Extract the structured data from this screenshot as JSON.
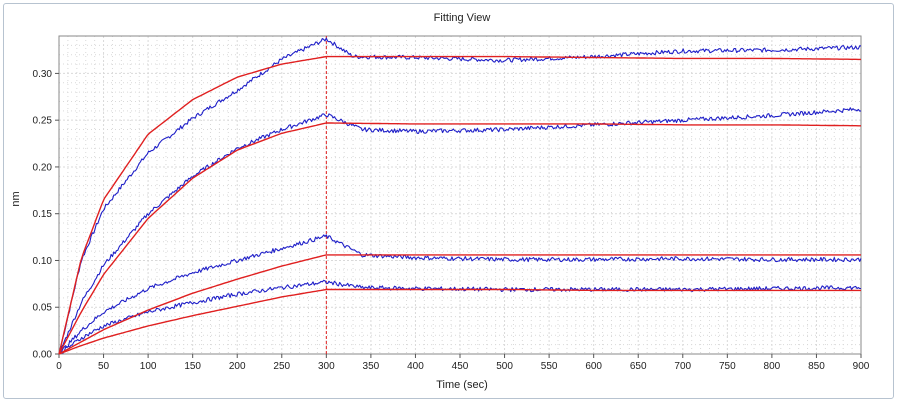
{
  "window": {
    "title": "Fitting View"
  },
  "chart_data": {
    "type": "line",
    "title": "Fitting View",
    "xlabel": "Time (sec)",
    "ylabel": "nm",
    "xlim": [
      0,
      900
    ],
    "ylim": [
      0,
      0.34
    ],
    "x_ticks": [
      0,
      50,
      100,
      150,
      200,
      250,
      300,
      350,
      400,
      450,
      500,
      550,
      600,
      650,
      700,
      750,
      800,
      850,
      900
    ],
    "y_ticks": [
      0.0,
      0.05,
      0.1,
      0.15,
      0.2,
      0.25,
      0.3
    ],
    "y_tick_labels": [
      "0.00",
      "0.05",
      "0.10",
      "0.15",
      "0.20",
      "0.25",
      "0.30"
    ],
    "grid": true,
    "legend": "none",
    "association_end_x": 300,
    "colors": {
      "measured": "#1f1fc8",
      "fit": "#e02020",
      "marker": "#e02020",
      "grid": "#d9d9d9"
    },
    "series": [
      {
        "role": "measured",
        "x": [
          0,
          25,
          50,
          100,
          150,
          200,
          250,
          300,
          330,
          400,
          500,
          600,
          700,
          800,
          900
        ],
        "values": [
          0.0,
          0.1,
          0.155,
          0.215,
          0.252,
          0.282,
          0.315,
          0.337,
          0.318,
          0.317,
          0.314,
          0.318,
          0.324,
          0.325,
          0.328
        ]
      },
      {
        "role": "fit",
        "x": [
          0,
          25,
          50,
          100,
          150,
          200,
          250,
          300,
          400,
          500,
          600,
          700,
          800,
          900
        ],
        "values": [
          0.0,
          0.102,
          0.165,
          0.235,
          0.272,
          0.296,
          0.31,
          0.318,
          0.318,
          0.318,
          0.317,
          0.316,
          0.316,
          0.315
        ]
      },
      {
        "role": "measured",
        "x": [
          0,
          25,
          50,
          100,
          150,
          200,
          250,
          300,
          340,
          400,
          500,
          600,
          700,
          800,
          900
        ],
        "values": [
          0.0,
          0.055,
          0.095,
          0.15,
          0.19,
          0.22,
          0.24,
          0.256,
          0.24,
          0.238,
          0.24,
          0.245,
          0.25,
          0.255,
          0.262
        ]
      },
      {
        "role": "fit",
        "x": [
          0,
          25,
          50,
          100,
          150,
          200,
          250,
          300,
          400,
          500,
          600,
          700,
          800,
          900
        ],
        "values": [
          0.0,
          0.045,
          0.085,
          0.145,
          0.188,
          0.218,
          0.236,
          0.247,
          0.246,
          0.246,
          0.246,
          0.245,
          0.245,
          0.244
        ]
      },
      {
        "role": "measured",
        "x": [
          0,
          25,
          50,
          100,
          150,
          200,
          250,
          300,
          340,
          400,
          500,
          600,
          700,
          800,
          900
        ],
        "values": [
          0.0,
          0.025,
          0.045,
          0.07,
          0.087,
          0.1,
          0.113,
          0.126,
          0.106,
          0.103,
          0.101,
          0.101,
          0.102,
          0.101,
          0.101
        ]
      },
      {
        "role": "fit",
        "x": [
          0,
          25,
          50,
          100,
          150,
          200,
          250,
          300,
          400,
          500,
          600,
          700,
          800,
          900
        ],
        "values": [
          0.0,
          0.013,
          0.026,
          0.047,
          0.065,
          0.08,
          0.094,
          0.106,
          0.106,
          0.106,
          0.106,
          0.106,
          0.106,
          0.106
        ]
      },
      {
        "role": "measured",
        "x": [
          0,
          25,
          50,
          100,
          150,
          200,
          250,
          300,
          340,
          400,
          500,
          600,
          700,
          800,
          900
        ],
        "values": [
          0.0,
          0.017,
          0.03,
          0.045,
          0.055,
          0.064,
          0.071,
          0.077,
          0.071,
          0.07,
          0.069,
          0.069,
          0.069,
          0.07,
          0.071
        ]
      },
      {
        "role": "fit",
        "x": [
          0,
          25,
          50,
          100,
          150,
          200,
          250,
          300,
          400,
          500,
          600,
          700,
          800,
          900
        ],
        "values": [
          0.0,
          0.009,
          0.017,
          0.03,
          0.041,
          0.051,
          0.061,
          0.069,
          0.069,
          0.069,
          0.068,
          0.068,
          0.068,
          0.068
        ]
      }
    ]
  }
}
